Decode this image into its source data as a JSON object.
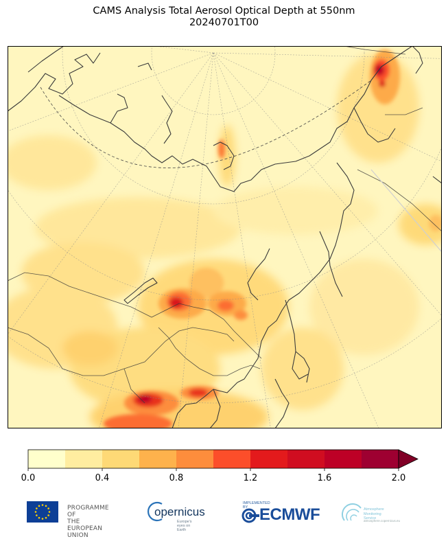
{
  "title": {
    "line1": "CAMS Analysis Total Aerosol Optical Depth at 550nm",
    "line2": "20240701T00"
  },
  "chart_data": {
    "type": "heatmap",
    "colorbar": {
      "min": 0.0,
      "max": 2.0,
      "step": 0.2,
      "extend": "max",
      "tick_values": [
        0.0,
        0.4,
        0.8,
        1.2,
        1.6,
        2.0
      ],
      "tick_labels": [
        "0.0",
        "0.4",
        "0.8",
        "1.2",
        "1.6",
        "2.0"
      ],
      "colors": [
        "#ffffcc",
        "#ffeda0",
        "#fed976",
        "#feb24c",
        "#fd8d3c",
        "#fc4e2a",
        "#e31a1c",
        "#d00d20",
        "#bd0026",
        "#9e0031",
        "#800026"
      ]
    }
  },
  "footer": {
    "eu_line1": "PROGRAMME OF",
    "eu_line2": "THE EUROPEAN UNION",
    "copernicus": "opernicus",
    "copernicus_tag": "Europe's eyes on Earth",
    "ecmwf_implemented": "IMPLEMENTED BY",
    "ecmwf": "ECMWF",
    "cams_line1": "Atmosphere",
    "cams_line2": "Monitoring Service",
    "cams_url": "atmosphere.copernicus.eu"
  }
}
